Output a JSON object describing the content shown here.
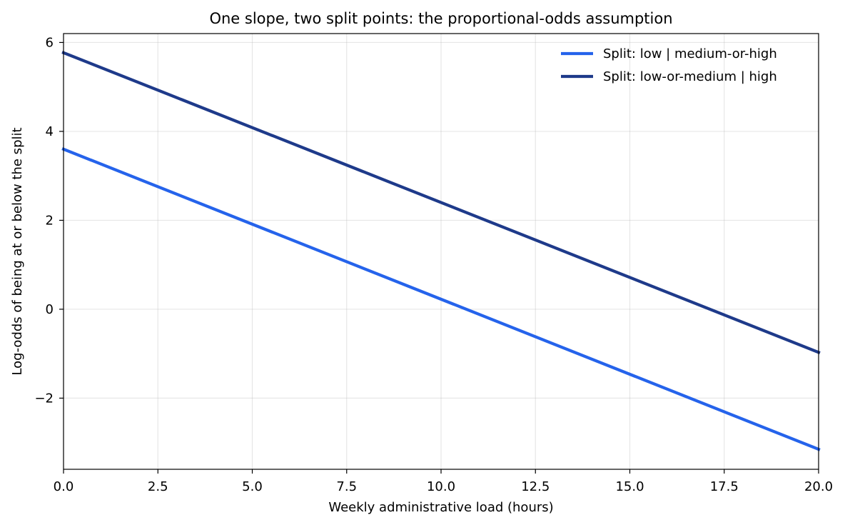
{
  "chart_data": {
    "type": "line",
    "title": "One slope, two split points: the proportional-odds assumption",
    "xlabel": "Weekly administrative load (hours)",
    "ylabel": "Log-odds of being at or below the split",
    "xlim": [
      0,
      20
    ],
    "ylim": [
      -3.6,
      6.2
    ],
    "xticks": [
      0,
      2.5,
      5,
      7.5,
      10,
      12.5,
      15,
      17.5,
      20
    ],
    "xtick_labels": [
      "0.0",
      "2.5",
      "5.0",
      "7.5",
      "10.0",
      "12.5",
      "15.0",
      "17.5",
      "20.0"
    ],
    "yticks": [
      -2,
      0,
      2,
      4,
      6
    ],
    "ytick_labels": [
      "−2",
      "0",
      "2",
      "4",
      "6"
    ],
    "grid": true,
    "legend_position": "top-right",
    "series": [
      {
        "name": "Split: low | medium-or-high",
        "color": "#2563eb",
        "x": [
          0,
          20
        ],
        "y": [
          3.6,
          -3.15
        ]
      },
      {
        "name": "Split: low-or-medium | high",
        "color": "#1e3a8a",
        "x": [
          0,
          20
        ],
        "y": [
          5.77,
          -0.97
        ]
      }
    ]
  }
}
